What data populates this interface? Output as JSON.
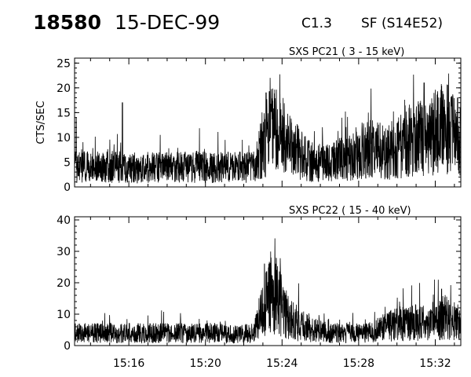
{
  "header": {
    "event_id": "18580",
    "date": "15-DEC-99",
    "goes_class": "C1.3",
    "location": "SF (S14E52)"
  },
  "chart_data": [
    {
      "type": "line",
      "title": "SXS PC21  (  3 - 15 keV)",
      "ylabel": "CTS/SEC",
      "xlabel": "",
      "xlim": [
        "15:13:10",
        "15:33:20"
      ],
      "ylim": [
        0,
        26
      ],
      "yticks": [
        "0",
        "5",
        "10",
        "15",
        "20",
        "25"
      ],
      "xticks": [],
      "grid": false,
      "series": [
        {
          "values_by_minute": {
            "15:13": 4,
            "15:14": 4,
            "15:15": 4,
            "15:16": 3.5,
            "15:17": 4,
            "15:18": 4,
            "15:19": 4,
            "15:20": 4,
            "15:21": 4,
            "15:22": 4,
            "15:23": 12.5,
            "15:24": 8,
            "15:25": 5,
            "15:26": 5,
            "15:27": 6,
            "15:28": 8,
            "15:29": 7,
            "15:30": 9,
            "15:31": 10,
            "15:32": 12,
            "15:33": 9
          },
          "peaks": [
            {
              "time": "15:13:15",
              "value": 14
            },
            {
              "time": "15:15:40",
              "value": 17
            },
            {
              "time": "15:23:10",
              "value": 19
            },
            {
              "time": "15:31:25",
              "value": 21
            },
            {
              "time": "15:33:10",
              "value": 18
            }
          ]
        }
      ]
    },
    {
      "type": "line",
      "title": "SXS PC22  ( 15 - 40 keV)",
      "ylabel": "",
      "xlabel": "",
      "xlim": [
        "15:13:10",
        "15:33:20"
      ],
      "ylim": [
        0,
        41
      ],
      "yticks": [
        "0",
        "10",
        "20",
        "30",
        "40"
      ],
      "xticks": [
        "15:16",
        "15:20",
        "15:24",
        "15:28",
        "15:32"
      ],
      "grid": false,
      "series": [
        {
          "values_by_minute": {
            "15:13": 4,
            "15:14": 4,
            "15:15": 4,
            "15:16": 4,
            "15:17": 4,
            "15:18": 4,
            "15:19": 4,
            "15:20": 4,
            "15:21": 3.5,
            "15:22": 4,
            "15:23": 18,
            "15:24": 8,
            "15:25": 5,
            "15:26": 4,
            "15:27": 4,
            "15:28": 4,
            "15:29": 6,
            "15:30": 7.5,
            "15:31": 7,
            "15:32": 9,
            "15:33": 7
          },
          "peaks": [
            {
              "time": "15:23:05",
              "value": 26
            },
            {
              "time": "15:24:00",
              "value": 13
            },
            {
              "time": "15:32:20",
              "value": 18
            }
          ]
        }
      ]
    }
  ]
}
